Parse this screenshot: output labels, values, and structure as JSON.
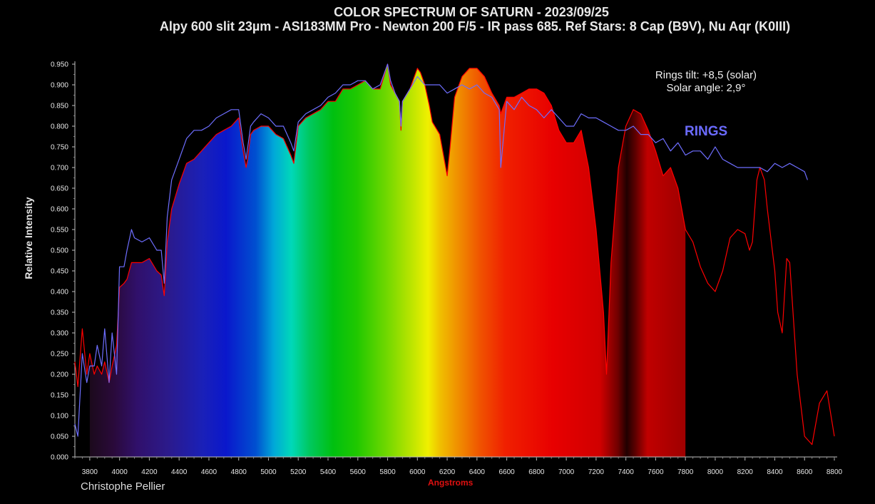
{
  "chart_data": {
    "type": "line",
    "title": "COLOR SPECTRUM OF SATURN - 2023/09/25",
    "subtitle": "Alpy 600 slit 23µm - ASI183MM Pro - Newton 200 F/5 - IR pass 685. Ref Stars: 8 Cap (B9V), Nu Aqr (K0III)",
    "xlabel": "Angstroms",
    "ylabel": "Relative Intensity",
    "xlim": [
      3700,
      8800
    ],
    "ylim": [
      0,
      0.95
    ],
    "xticks": [
      "3800",
      "4000",
      "4200",
      "4400",
      "4600",
      "4800",
      "5000",
      "5200",
      "5400",
      "5600",
      "5800",
      "6000",
      "6200",
      "6400",
      "6600",
      "6800",
      "7000",
      "7200",
      "7400",
      "7600",
      "7800",
      "8000",
      "8200",
      "8400",
      "8600",
      "8800"
    ],
    "yticks": [
      "0.000",
      "0.050",
      "0.100",
      "0.150",
      "0.200",
      "0.250",
      "0.300",
      "0.350",
      "0.400",
      "0.450",
      "0.500",
      "0.550",
      "0.600",
      "0.650",
      "0.700",
      "0.750",
      "0.800",
      "0.850",
      "0.900",
      "0.950"
    ],
    "grid": false,
    "colors": {
      "saturn": "#ff0000",
      "rings": "#6e6eff"
    },
    "series": [
      {
        "name": "",
        "x": [
          3700,
          3720,
          3750,
          3780,
          3800,
          3830,
          3850,
          3880,
          3900,
          3930,
          3950,
          3980,
          4000,
          4030,
          4050,
          4080,
          4100,
          4150,
          4200,
          4250,
          4280,
          4300,
          4320,
          4350,
          4400,
          4450,
          4500,
          4550,
          4600,
          4650,
          4700,
          4750,
          4800,
          4830,
          4850,
          4860,
          4880,
          4900,
          4950,
          5000,
          5050,
          5100,
          5150,
          5170,
          5200,
          5250,
          5300,
          5350,
          5400,
          5450,
          5500,
          5550,
          5600,
          5650,
          5700,
          5750,
          5800,
          5820,
          5850,
          5880,
          5890,
          5900,
          5950,
          6000,
          6020,
          6050,
          6080,
          6100,
          6150,
          6180,
          6200,
          6220,
          6250,
          6300,
          6350,
          6400,
          6450,
          6500,
          6550,
          6560,
          6600,
          6650,
          6700,
          6750,
          6800,
          6850,
          6900,
          6950,
          7000,
          7050,
          7100,
          7150,
          7200,
          7250,
          7270,
          7300,
          7350,
          7400,
          7450,
          7500,
          7550,
          7600,
          7650,
          7700,
          7750,
          7800,
          7850,
          7900,
          7950,
          8000,
          8050,
          8100,
          8150,
          8200,
          8230,
          8250,
          8280,
          8300,
          8330,
          8350,
          8400,
          8420,
          8450,
          8480,
          8500,
          8550,
          8600,
          8650,
          8700,
          8750,
          8800
        ],
        "y": [
          0.23,
          0.17,
          0.31,
          0.2,
          0.25,
          0.2,
          0.22,
          0.2,
          0.23,
          0.18,
          0.22,
          0.27,
          0.41,
          0.42,
          0.43,
          0.47,
          0.47,
          0.47,
          0.48,
          0.45,
          0.44,
          0.39,
          0.52,
          0.6,
          0.66,
          0.71,
          0.72,
          0.74,
          0.76,
          0.78,
          0.79,
          0.8,
          0.82,
          0.74,
          0.7,
          0.72,
          0.78,
          0.79,
          0.8,
          0.8,
          0.78,
          0.77,
          0.73,
          0.71,
          0.8,
          0.82,
          0.83,
          0.84,
          0.86,
          0.86,
          0.89,
          0.89,
          0.9,
          0.91,
          0.89,
          0.89,
          0.95,
          0.9,
          0.88,
          0.86,
          0.79,
          0.86,
          0.89,
          0.94,
          0.93,
          0.9,
          0.85,
          0.81,
          0.78,
          0.72,
          0.68,
          0.75,
          0.87,
          0.92,
          0.94,
          0.94,
          0.92,
          0.88,
          0.85,
          0.83,
          0.87,
          0.87,
          0.88,
          0.89,
          0.89,
          0.88,
          0.85,
          0.79,
          0.76,
          0.76,
          0.79,
          0.7,
          0.55,
          0.35,
          0.2,
          0.47,
          0.7,
          0.8,
          0.84,
          0.83,
          0.79,
          0.74,
          0.68,
          0.7,
          0.65,
          0.55,
          0.52,
          0.46,
          0.42,
          0.4,
          0.45,
          0.53,
          0.55,
          0.54,
          0.5,
          0.52,
          0.67,
          0.7,
          0.67,
          0.6,
          0.45,
          0.35,
          0.3,
          0.48,
          0.47,
          0.2,
          0.05,
          0.03,
          0.13,
          0.16,
          0.05
        ]
      },
      {
        "name": "RINGS",
        "x": [
          3700,
          3720,
          3750,
          3780,
          3800,
          3830,
          3850,
          3880,
          3900,
          3930,
          3950,
          3980,
          4000,
          4030,
          4050,
          4080,
          4100,
          4150,
          4200,
          4250,
          4280,
          4300,
          4320,
          4350,
          4400,
          4450,
          4500,
          4550,
          4600,
          4650,
          4700,
          4750,
          4800,
          4830,
          4850,
          4880,
          4900,
          4950,
          5000,
          5050,
          5100,
          5150,
          5170,
          5200,
          5250,
          5300,
          5350,
          5400,
          5450,
          5500,
          5550,
          5600,
          5650,
          5700,
          5750,
          5800,
          5820,
          5850,
          5880,
          5890,
          5900,
          5950,
          6000,
          6050,
          6100,
          6150,
          6200,
          6250,
          6300,
          6350,
          6400,
          6450,
          6500,
          6550,
          6560,
          6600,
          6650,
          6700,
          6750,
          6800,
          6850,
          6900,
          6950,
          7000,
          7050,
          7100,
          7150,
          7200,
          7250,
          7300,
          7350,
          7400,
          7450,
          7500,
          7550,
          7600,
          7650,
          7700,
          7750,
          7800,
          7850,
          7900,
          7950,
          8000,
          8050,
          8100,
          8150,
          8200,
          8250,
          8300,
          8350,
          8400,
          8450,
          8500,
          8550,
          8600,
          8620
        ],
        "y": [
          0.08,
          0.05,
          0.25,
          0.18,
          0.22,
          0.22,
          0.27,
          0.22,
          0.31,
          0.18,
          0.3,
          0.2,
          0.46,
          0.46,
          0.5,
          0.55,
          0.53,
          0.52,
          0.53,
          0.5,
          0.5,
          0.42,
          0.58,
          0.67,
          0.72,
          0.77,
          0.79,
          0.79,
          0.8,
          0.82,
          0.83,
          0.84,
          0.84,
          0.76,
          0.72,
          0.8,
          0.81,
          0.83,
          0.82,
          0.8,
          0.8,
          0.76,
          0.74,
          0.81,
          0.83,
          0.84,
          0.85,
          0.87,
          0.88,
          0.9,
          0.9,
          0.91,
          0.91,
          0.89,
          0.9,
          0.95,
          0.91,
          0.88,
          0.86,
          0.8,
          0.86,
          0.89,
          0.92,
          0.9,
          0.9,
          0.9,
          0.88,
          0.89,
          0.9,
          0.89,
          0.9,
          0.88,
          0.87,
          0.84,
          0.7,
          0.86,
          0.84,
          0.87,
          0.85,
          0.84,
          0.82,
          0.84,
          0.82,
          0.8,
          0.8,
          0.83,
          0.82,
          0.82,
          0.81,
          0.8,
          0.79,
          0.79,
          0.8,
          0.78,
          0.78,
          0.76,
          0.77,
          0.74,
          0.76,
          0.73,
          0.74,
          0.74,
          0.72,
          0.75,
          0.72,
          0.71,
          0.7,
          0.7,
          0.7,
          0.7,
          0.69,
          0.71,
          0.7,
          0.71,
          0.7,
          0.69,
          0.67
        ]
      }
    ],
    "annotations": [
      "Rings tilt: +8,5 (solar)",
      "Solar angle: 2,9°",
      "RINGS"
    ]
  },
  "credit": "Christophe Pellier"
}
